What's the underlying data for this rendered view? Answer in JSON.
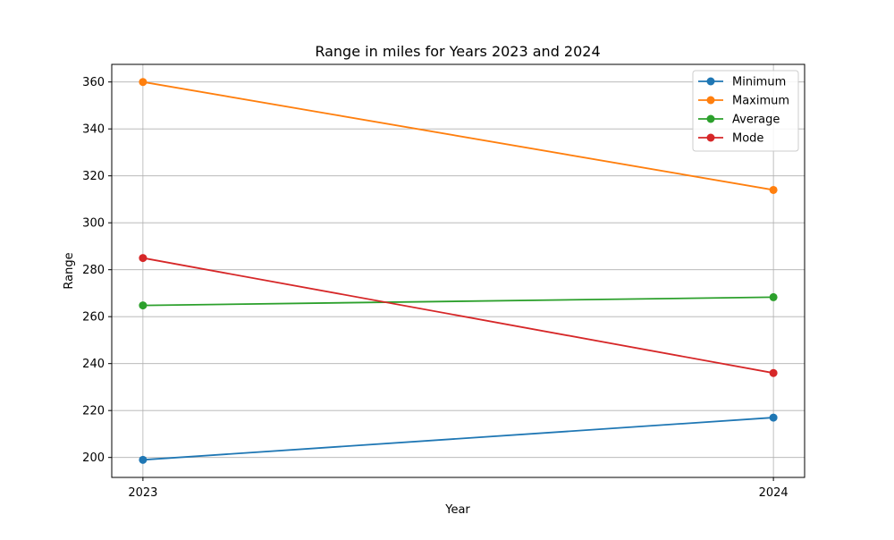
{
  "chart_data": {
    "type": "line",
    "title": "Range in miles for Years 2023 and 2024",
    "xlabel": "Year",
    "ylabel": "Range",
    "categories": [
      "2023",
      "2024"
    ],
    "ylim": [
      191.5,
      367.5
    ],
    "yticks": [
      200,
      220,
      240,
      260,
      280,
      300,
      320,
      340,
      360
    ],
    "grid": true,
    "legend_position": "top-right",
    "series": [
      {
        "name": "Minimum",
        "values": [
          199,
          217
        ],
        "color": "#1f77b4"
      },
      {
        "name": "Maximum",
        "values": [
          360,
          314
        ],
        "color": "#ff7f0e"
      },
      {
        "name": "Average",
        "values": [
          264.8,
          268.3
        ],
        "color": "#2ca02c"
      },
      {
        "name": "Mode",
        "values": [
          285,
          236
        ],
        "color": "#d62728"
      }
    ]
  }
}
